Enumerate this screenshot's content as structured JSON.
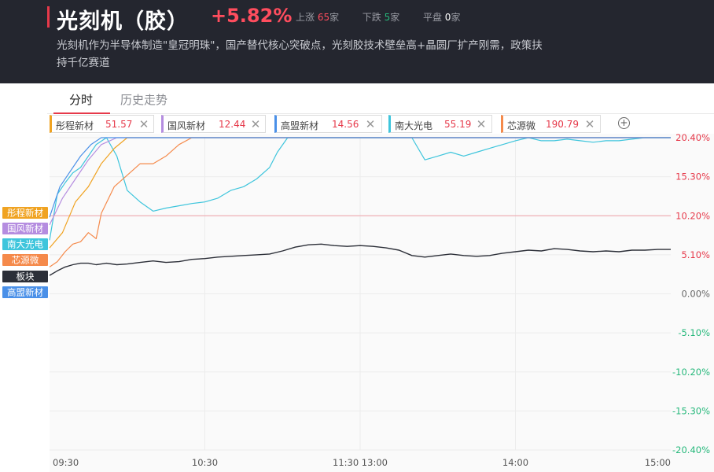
{
  "header": {
    "title": "光刻机（胶）",
    "change": "+5.82%",
    "up_label": "上涨",
    "up_count": "65",
    "up_unit": "家",
    "down_label": "下跌",
    "down_count": "5",
    "down_unit": "家",
    "flat_label": "平盘",
    "flat_count": "0",
    "flat_unit": "家",
    "description": "光刻机作为半导体制造\"皇冠明珠\"，国产替代核心突破点，光刻胶技术壁垒高+晶圆厂扩产刚需，政策扶持千亿赛道",
    "accent_color": "#e6394a"
  },
  "tabs": [
    {
      "label": "分时",
      "active": true
    },
    {
      "label": "历史走势",
      "active": false
    }
  ],
  "chips": [
    {
      "name": "彤程新材",
      "value": "51.57",
      "color": "#f0a322"
    },
    {
      "name": "国风新材",
      "value": "12.44",
      "color": "#b58de0"
    },
    {
      "name": "高盟新材",
      "value": "14.56",
      "color": "#4a90e8"
    },
    {
      "name": "南大光电",
      "value": "55.19",
      "color": "#3ec5dc"
    },
    {
      "name": "芯源微",
      "value": "190.79",
      "color": "#f58a4b"
    }
  ],
  "icons": {
    "close": "close-icon",
    "add": "add-circle-icon"
  },
  "chart_data": {
    "type": "line",
    "x_ticks": [
      "09:30",
      "10:30",
      "11:30 13:00",
      "14:00",
      "15:00"
    ],
    "y_ticks": [
      "20.40%",
      "15.30%",
      "10.20%",
      "5.10%",
      "0.00%",
      "-5.10%",
      "-10.20%",
      "-15.30%",
      "-20.40%"
    ],
    "ylim": [
      -20.4,
      20.4
    ],
    "reference_line": 10.2,
    "legend": [
      {
        "label": "彤程新材",
        "color": "#f0a322"
      },
      {
        "label": "国风新材",
        "color": "#b58de0"
      },
      {
        "label": "南大光电",
        "color": "#3ec5dc"
      },
      {
        "label": "芯源微",
        "color": "#f58a4b"
      },
      {
        "label": "板块",
        "color": "#2c2f38"
      },
      {
        "label": "高盟新材",
        "color": "#4a90e8"
      }
    ],
    "series": [
      {
        "name": "板块",
        "color": "#2c2f38",
        "points": [
          [
            0,
            2.4
          ],
          [
            3,
            3.0
          ],
          [
            6,
            3.5
          ],
          [
            9,
            3.8
          ],
          [
            12,
            4.0
          ],
          [
            15,
            4.0
          ],
          [
            18,
            3.8
          ],
          [
            22,
            4.0
          ],
          [
            26,
            3.8
          ],
          [
            30,
            3.9
          ],
          [
            35,
            4.1
          ],
          [
            40,
            4.3
          ],
          [
            45,
            4.1
          ],
          [
            50,
            4.2
          ],
          [
            55,
            4.5
          ],
          [
            60,
            4.6
          ],
          [
            65,
            4.8
          ],
          [
            70,
            4.9
          ],
          [
            75,
            5.0
          ],
          [
            80,
            5.1
          ],
          [
            85,
            5.2
          ],
          [
            90,
            5.6
          ],
          [
            95,
            6.1
          ],
          [
            100,
            6.4
          ],
          [
            105,
            6.5
          ],
          [
            110,
            6.3
          ],
          [
            115,
            6.2
          ],
          [
            120,
            6.3
          ],
          [
            125,
            6.2
          ],
          [
            130,
            6.0
          ],
          [
            135,
            5.7
          ],
          [
            140,
            5.0
          ],
          [
            145,
            4.8
          ],
          [
            150,
            5.0
          ],
          [
            155,
            5.2
          ],
          [
            160,
            5.0
          ],
          [
            165,
            4.9
          ],
          [
            170,
            5.0
          ],
          [
            175,
            5.3
          ],
          [
            180,
            5.5
          ],
          [
            185,
            5.7
          ],
          [
            190,
            5.6
          ],
          [
            195,
            5.9
          ],
          [
            200,
            5.8
          ],
          [
            205,
            5.6
          ],
          [
            210,
            5.5
          ],
          [
            215,
            5.6
          ],
          [
            220,
            5.5
          ],
          [
            225,
            5.7
          ],
          [
            230,
            5.7
          ],
          [
            235,
            5.8
          ],
          [
            240,
            5.8
          ]
        ]
      },
      {
        "name": "南大光电",
        "color": "#3ec5dc",
        "points": [
          [
            0,
            7.0
          ],
          [
            3,
            13.0
          ],
          [
            6,
            14.5
          ],
          [
            9,
            15.8
          ],
          [
            12,
            16.5
          ],
          [
            15,
            18.0
          ],
          [
            18,
            19.5
          ],
          [
            22,
            20.4
          ],
          [
            26,
            18.0
          ],
          [
            30,
            13.5
          ],
          [
            35,
            12.0
          ],
          [
            40,
            10.8
          ],
          [
            45,
            11.2
          ],
          [
            50,
            11.5
          ],
          [
            55,
            11.8
          ],
          [
            60,
            12.0
          ],
          [
            65,
            12.5
          ],
          [
            70,
            13.5
          ],
          [
            75,
            14.0
          ],
          [
            80,
            15.0
          ],
          [
            85,
            16.5
          ],
          [
            88,
            18.5
          ],
          [
            92,
            20.4
          ],
          [
            95,
            20.4
          ],
          [
            120,
            20.4
          ],
          [
            140,
            20.4
          ],
          [
            145,
            17.5
          ],
          [
            150,
            18.0
          ],
          [
            155,
            18.5
          ],
          [
            160,
            18.0
          ],
          [
            165,
            18.5
          ],
          [
            170,
            19.0
          ],
          [
            175,
            19.5
          ],
          [
            180,
            20.0
          ],
          [
            185,
            20.4
          ],
          [
            190,
            20.0
          ],
          [
            195,
            20.0
          ],
          [
            200,
            20.2
          ],
          [
            205,
            20.0
          ],
          [
            210,
            19.8
          ],
          [
            215,
            20.0
          ],
          [
            220,
            20.0
          ],
          [
            225,
            20.2
          ],
          [
            230,
            20.4
          ],
          [
            240,
            20.4
          ]
        ]
      },
      {
        "name": "芯源微",
        "color": "#f58a4b",
        "points": [
          [
            0,
            3.5
          ],
          [
            3,
            4.2
          ],
          [
            6,
            5.5
          ],
          [
            9,
            6.5
          ],
          [
            12,
            6.8
          ],
          [
            15,
            8.0
          ],
          [
            18,
            7.2
          ],
          [
            20,
            10.5
          ],
          [
            25,
            14.0
          ],
          [
            30,
            15.5
          ],
          [
            35,
            17.0
          ],
          [
            40,
            17.0
          ],
          [
            45,
            18.0
          ],
          [
            50,
            19.5
          ],
          [
            55,
            20.4
          ],
          [
            65,
            20.4
          ],
          [
            240,
            20.4
          ]
        ]
      },
      {
        "name": "彤程新材",
        "color": "#f0a322",
        "points": [
          [
            0,
            6.0
          ],
          [
            5,
            8.0
          ],
          [
            10,
            12.0
          ],
          [
            15,
            14.0
          ],
          [
            20,
            17.0
          ],
          [
            25,
            19.0
          ],
          [
            30,
            20.4
          ],
          [
            240,
            20.4
          ]
        ]
      },
      {
        "name": "国风新材",
        "color": "#b58de0",
        "points": [
          [
            0,
            9.0
          ],
          [
            5,
            12.5
          ],
          [
            10,
            15.0
          ],
          [
            15,
            17.5
          ],
          [
            20,
            19.5
          ],
          [
            26,
            20.4
          ],
          [
            240,
            20.4
          ]
        ]
      },
      {
        "name": "高盟新材",
        "color": "#4a90e8",
        "points": [
          [
            0,
            10.0
          ],
          [
            4,
            14.0
          ],
          [
            8,
            16.0
          ],
          [
            12,
            18.0
          ],
          [
            16,
            19.5
          ],
          [
            20,
            20.4
          ],
          [
            240,
            20.4
          ]
        ]
      }
    ]
  }
}
